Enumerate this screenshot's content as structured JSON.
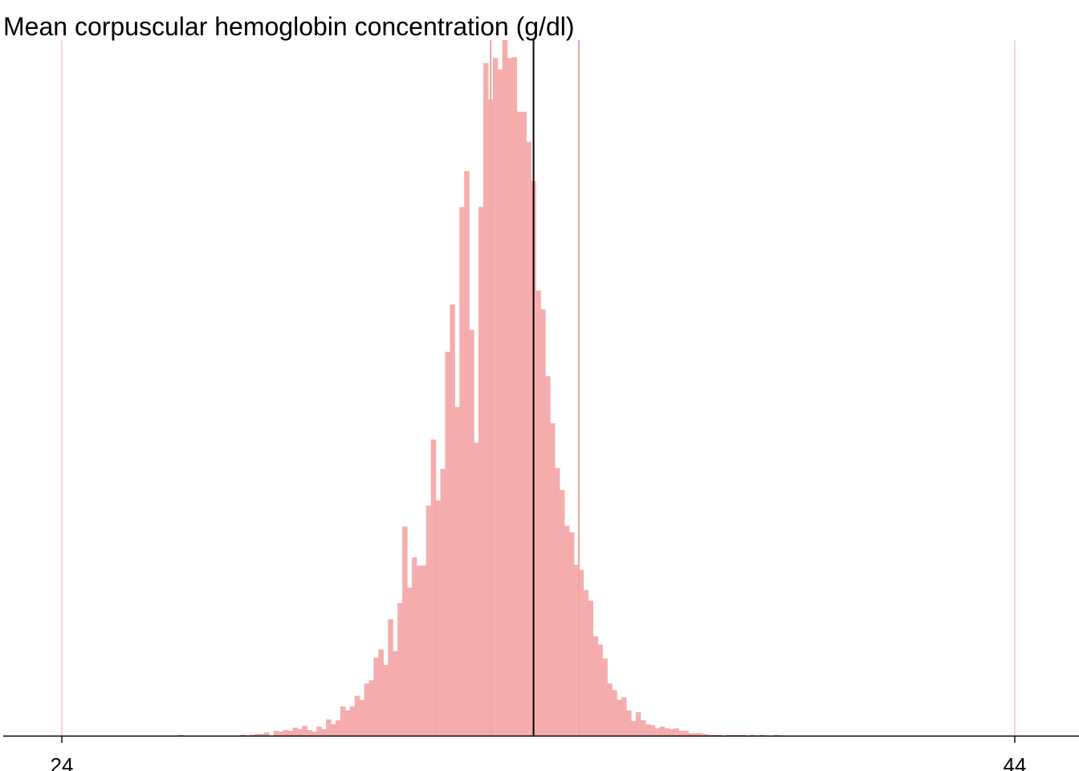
{
  "chart_data": {
    "type": "bar",
    "title": "Mean corpuscular hemoglobin concentration (g/dl)",
    "xlabel": "",
    "ylabel": "",
    "xlim": [
      24,
      44
    ],
    "x_ticks": [
      "24",
      "44"
    ],
    "y_axis_shown": false,
    "grid": false,
    "bin_width": 0.11,
    "bar_color": "#f4a6a6",
    "reference_line_color": "#ffc8c8",
    "inner_reference_line_color": "#f28a8a",
    "mean_line_color": "#000000",
    "reference_lines": [
      24,
      33,
      34.85,
      44
    ],
    "mean_line": 33.9,
    "series": [
      {
        "x": [
          26.5,
          27.8,
          28,
          28.1,
          28.2,
          28.3,
          28.5,
          28.6,
          28.7,
          28.8,
          28.9,
          29,
          29.1,
          29.2,
          29.3,
          29.4,
          29.5,
          29.6,
          29.7,
          29.8,
          29.9,
          30,
          30.1,
          30.2,
          30.3,
          30.4,
          30.5,
          30.6,
          30.7,
          30.8,
          30.9,
          31,
          31.1,
          31.2,
          31.3,
          31.4,
          31.5,
          31.6,
          31.7,
          31.8,
          31.9,
          32,
          32.1,
          32.2,
          32.3,
          32.4,
          32.5,
          32.6,
          32.7,
          32.8,
          32.9,
          33,
          33.1,
          33.2,
          33.3,
          33.4,
          33.5,
          33.6,
          33.7,
          33.8,
          33.9,
          34,
          34.1,
          34.2,
          34.3,
          34.4,
          34.5,
          34.6,
          34.7,
          34.8,
          34.9,
          35,
          35.1,
          35.2,
          35.3,
          35.4,
          35.5,
          35.6,
          35.7,
          35.8,
          35.9,
          36,
          36.1,
          36.2,
          36.3,
          36.4,
          36.5,
          36.6,
          36.7,
          36.8,
          36.9,
          37,
          37.1,
          37.2,
          37.3,
          37.4,
          37.5,
          37.6,
          37.7,
          37.8,
          38,
          38.1,
          38.2,
          38.3,
          38.5,
          38.7,
          39
        ],
        "values": [
          1,
          1,
          1,
          2,
          2,
          4,
          6,
          5,
          7,
          6,
          10,
          8,
          12,
          7,
          5,
          11,
          8,
          20,
          14,
          19,
          36,
          31,
          36,
          49,
          44,
          64,
          68,
          96,
          106,
          87,
          143,
          104,
          163,
          257,
          182,
          219,
          209,
          209,
          283,
          364,
          289,
          328,
          472,
          530,
          404,
          650,
          694,
          499,
          360,
          650,
          827,
          782,
          833,
          819,
          855,
          833,
          834,
          767,
          767,
          730,
          682,
          547,
          524,
          442,
          384,
          329,
          302,
          258,
          250,
          210,
          204,
          179,
          166,
          122,
          112,
          95,
          64,
          56,
          44,
          47,
          31,
          18,
          29,
          19,
          14,
          13,
          9,
          11,
          9,
          8,
          9,
          6,
          6,
          3,
          3,
          3,
          2,
          1,
          1,
          1,
          1,
          1,
          1,
          1,
          1,
          1,
          1
        ]
      }
    ]
  }
}
